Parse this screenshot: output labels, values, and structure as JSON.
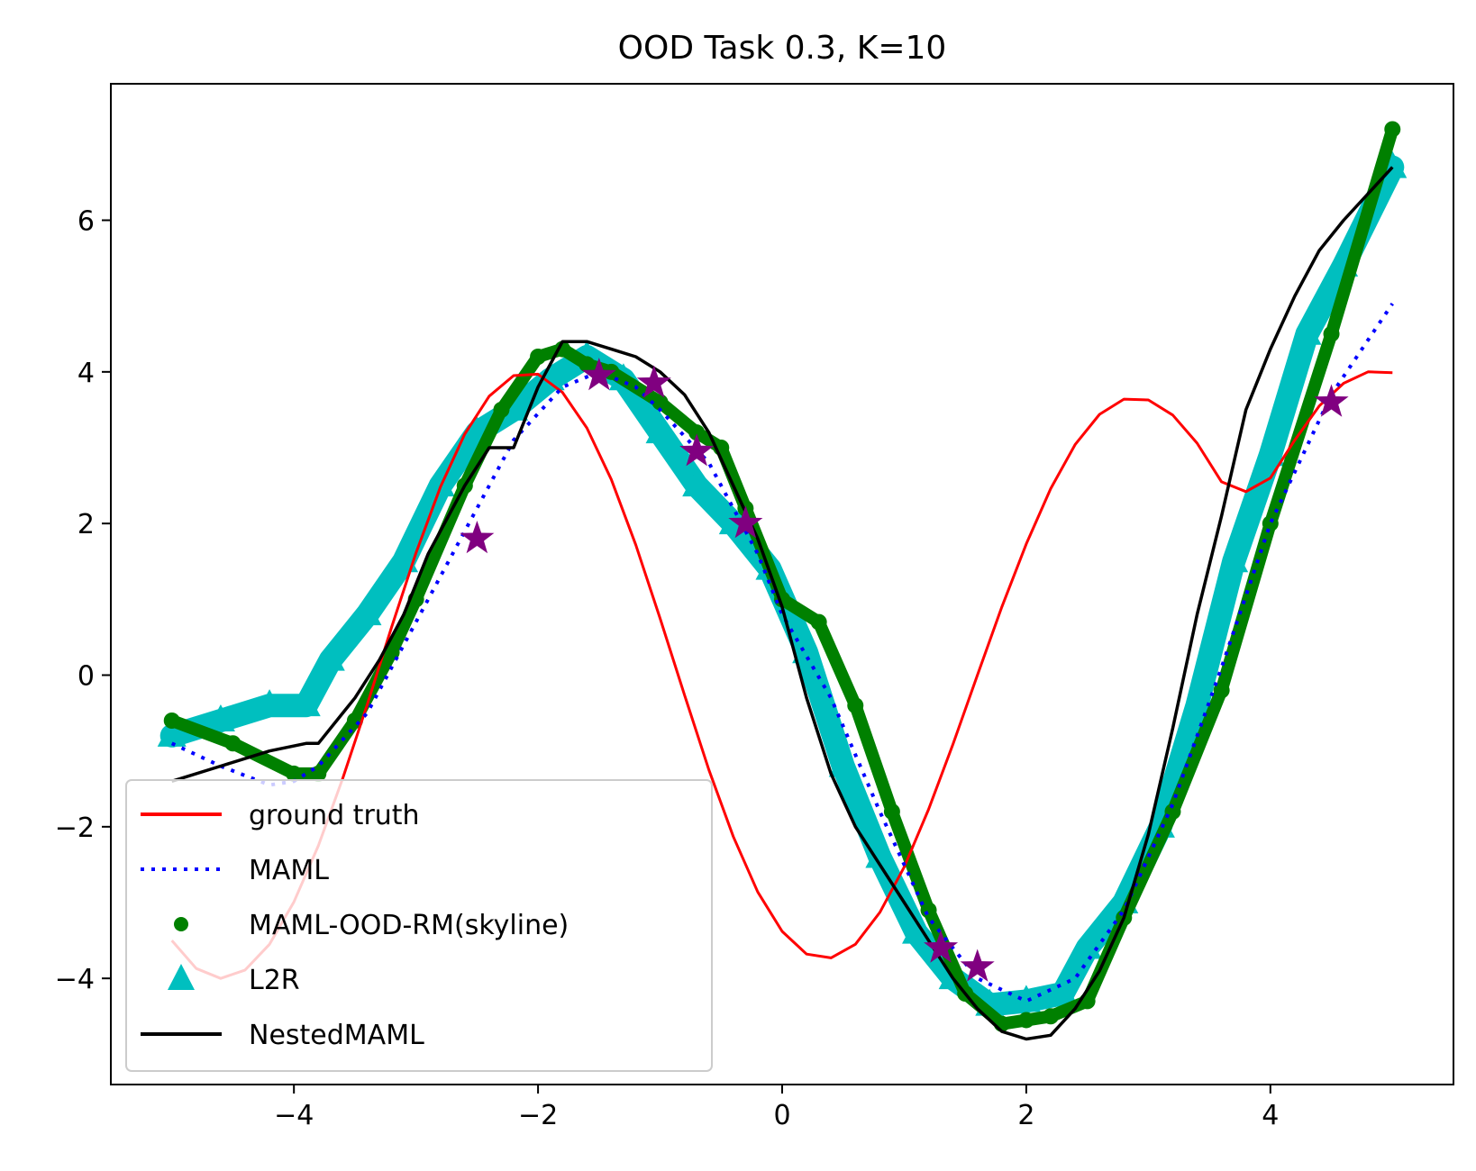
{
  "chart_data": {
    "type": "line",
    "title": "OOD Task 0.3, K=10",
    "xlabel": "",
    "ylabel": "",
    "xlim": [
      -5.5,
      5.5
    ],
    "ylim": [
      -5.4,
      7.8
    ],
    "xticks": [
      -4,
      -2,
      0,
      2,
      4
    ],
    "yticks": [
      -4,
      -2,
      0,
      2,
      4,
      6
    ],
    "grid": false,
    "legend_position": "lower-left",
    "series": [
      {
        "name": "ground truth",
        "style": "solid-line",
        "color": "#ff0000",
        "x": [
          -5.0,
          -4.8,
          -4.6,
          -4.4,
          -4.2,
          -4.0,
          -3.8,
          -3.6,
          -3.4,
          -3.2,
          -3.0,
          -2.8,
          -2.6,
          -2.4,
          -2.2,
          -2.0,
          -1.8,
          -1.6,
          -1.4,
          -1.2,
          -1.0,
          -0.8,
          -0.6,
          -0.4,
          -0.2,
          0.0,
          0.2,
          0.4,
          0.6,
          0.8,
          1.0,
          1.2,
          1.4,
          1.6,
          1.8,
          2.0,
          2.2,
          2.4,
          2.6,
          2.8,
          3.0,
          3.2,
          3.4,
          3.6,
          3.8,
          4.0,
          4.2,
          4.4,
          4.6,
          4.8,
          5.0
        ],
        "y": [
          -3.5,
          -3.87,
          -4.0,
          -3.89,
          -3.55,
          -2.99,
          -2.25,
          -1.36,
          -0.39,
          0.63,
          1.61,
          2.48,
          3.18,
          3.68,
          3.95,
          3.97,
          3.73,
          3.26,
          2.58,
          1.72,
          0.75,
          -0.26,
          -1.25,
          -2.13,
          -2.86,
          -3.38,
          -3.68,
          -3.73,
          -3.55,
          -3.13,
          -2.53,
          -1.77,
          -0.91,
          0.0,
          0.9,
          1.73,
          2.46,
          3.04,
          3.44,
          3.64,
          3.63,
          3.43,
          3.06,
          2.55,
          2.42,
          2.6,
          3.1,
          3.55,
          3.85,
          4.0,
          3.99
        ]
      },
      {
        "name": "MAML",
        "style": "dotted-line",
        "color": "#0000ff",
        "x": [
          -5.0,
          -4.6,
          -4.2,
          -4.0,
          -3.8,
          -3.4,
          -3.0,
          -2.6,
          -2.2,
          -1.8,
          -1.5,
          -1.2,
          -1.0,
          -0.6,
          -0.2,
          0.0,
          0.4,
          0.8,
          1.2,
          1.6,
          2.0,
          2.4,
          2.8,
          3.2,
          3.6,
          4.0,
          4.5,
          5.0
        ],
        "y": [
          -0.9,
          -1.2,
          -1.45,
          -1.4,
          -1.2,
          -0.5,
          0.7,
          1.9,
          3.1,
          3.8,
          4.0,
          3.8,
          3.5,
          2.8,
          1.6,
          0.8,
          -0.3,
          -1.8,
          -3.2,
          -4.0,
          -4.3,
          -4.0,
          -3.1,
          -1.7,
          0.1,
          2.0,
          3.7,
          4.9
        ]
      },
      {
        "name": "MAML-OOD-RM(skyline)",
        "style": "thick-dots",
        "color": "#008000",
        "x": [
          -5.0,
          -4.5,
          -4.0,
          -3.8,
          -3.5,
          -3.2,
          -3.0,
          -2.6,
          -2.3,
          -2.0,
          -1.8,
          -1.6,
          -1.4,
          -1.0,
          -0.7,
          -0.5,
          -0.3,
          0.0,
          0.3,
          0.6,
          0.9,
          1.2,
          1.5,
          1.8,
          2.0,
          2.2,
          2.5,
          2.8,
          3.2,
          3.6,
          4.0,
          4.5,
          5.0
        ],
        "y": [
          -0.6,
          -0.9,
          -1.3,
          -1.3,
          -0.6,
          0.3,
          1.0,
          2.5,
          3.5,
          4.2,
          4.3,
          4.1,
          4.0,
          3.6,
          3.2,
          3.0,
          2.2,
          1.0,
          0.7,
          -0.4,
          -1.8,
          -3.1,
          -4.2,
          -4.6,
          -4.55,
          -4.5,
          -4.3,
          -3.2,
          -1.8,
          -0.2,
          2.0,
          4.5,
          7.2
        ]
      },
      {
        "name": "L2R",
        "style": "thick-triangles",
        "color": "#00bfbf",
        "x": [
          -5.0,
          -4.6,
          -4.2,
          -3.9,
          -3.7,
          -3.4,
          -3.1,
          -2.8,
          -2.5,
          -2.2,
          -1.9,
          -1.6,
          -1.3,
          -1.0,
          -0.7,
          -0.4,
          -0.1,
          0.2,
          0.5,
          0.8,
          1.1,
          1.4,
          1.7,
          2.0,
          2.3,
          2.5,
          2.8,
          3.1,
          3.4,
          3.7,
          4.0,
          4.3,
          4.6,
          5.0
        ],
        "y": [
          -0.8,
          -0.6,
          -0.4,
          -0.4,
          0.2,
          0.8,
          1.5,
          2.5,
          3.2,
          3.5,
          3.9,
          4.2,
          3.9,
          3.2,
          2.5,
          2.0,
          1.4,
          0.3,
          -1.2,
          -2.4,
          -3.4,
          -4.0,
          -4.35,
          -4.3,
          -4.2,
          -3.6,
          -3.0,
          -2.0,
          -0.4,
          1.5,
          2.9,
          4.5,
          5.4,
          6.7
        ]
      },
      {
        "name": "NestedMAML",
        "style": "solid-line",
        "color": "#000000",
        "x": [
          -5.0,
          -4.6,
          -4.2,
          -3.9,
          -3.8,
          -3.5,
          -3.3,
          -3.1,
          -2.9,
          -2.6,
          -2.4,
          -2.2,
          -2.1,
          -2.0,
          -1.8,
          -1.6,
          -1.4,
          -1.2,
          -1.0,
          -0.8,
          -0.6,
          -0.4,
          -0.2,
          0.0,
          0.2,
          0.4,
          0.6,
          0.8,
          1.0,
          1.2,
          1.4,
          1.6,
          1.8,
          2.0,
          2.2,
          2.4,
          2.6,
          2.8,
          3.0,
          3.2,
          3.4,
          3.6,
          3.8,
          4.0,
          4.2,
          4.4,
          4.6,
          5.0
        ],
        "y": [
          -1.4,
          -1.2,
          -1.0,
          -0.9,
          -0.9,
          -0.3,
          0.2,
          0.8,
          1.6,
          2.5,
          3.0,
          3.0,
          3.4,
          3.8,
          4.4,
          4.4,
          4.3,
          4.2,
          4.0,
          3.7,
          3.2,
          2.5,
          1.8,
          0.9,
          -0.3,
          -1.3,
          -2.0,
          -2.5,
          -3.0,
          -3.5,
          -4.0,
          -4.4,
          -4.7,
          -4.8,
          -4.75,
          -4.4,
          -3.9,
          -3.2,
          -2.1,
          -0.7,
          0.8,
          2.1,
          3.5,
          4.3,
          5.0,
          5.6,
          6.0,
          6.7
        ]
      }
    ],
    "annotations": {
      "support_points": {
        "marker": "star",
        "color": "#800080",
        "x": [
          -2.5,
          -1.5,
          -1.05,
          -0.7,
          -0.3,
          1.3,
          1.6,
          4.5
        ],
        "y": [
          1.8,
          3.95,
          3.85,
          2.95,
          2.0,
          -3.6,
          -3.85,
          3.6
        ]
      }
    }
  }
}
